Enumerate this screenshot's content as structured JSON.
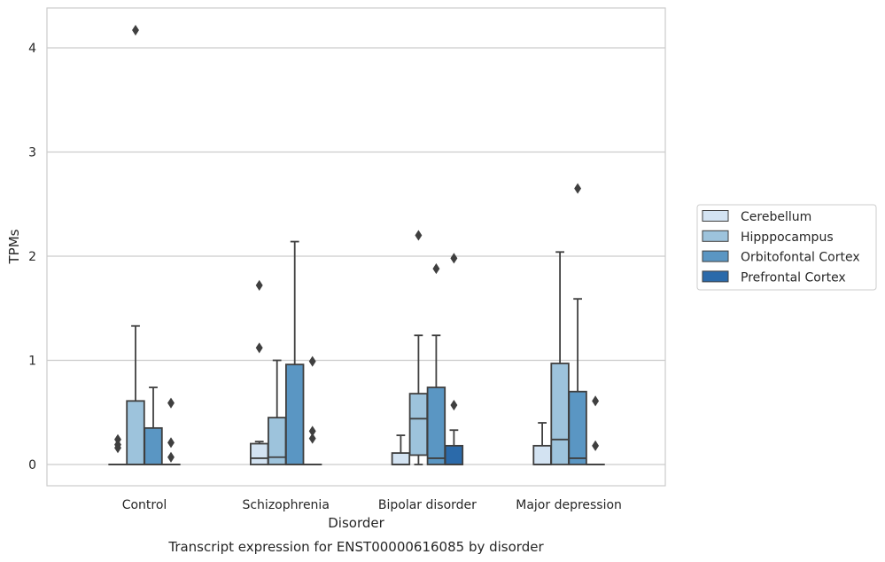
{
  "chart_data": {
    "type": "box",
    "caption": "Transcript expression for ENST00000616085 by disorder",
    "xlabel": "Disorder",
    "ylabel": "TPMs",
    "ylim": [
      -0.2,
      4.38
    ],
    "yticks": [
      0,
      1,
      2,
      3,
      4
    ],
    "grid": "horizontal",
    "legend_position": "right",
    "categories": [
      "Control",
      "Schizophrenia",
      "Bipolar disorder",
      "Major depression"
    ],
    "series": [
      {
        "name": "Cerebellum",
        "color": "#d3e3f2",
        "boxes": [
          {
            "q1": 0,
            "median": 0,
            "q3": 0,
            "whisker_low": 0,
            "whisker_high": 0,
            "outliers": [
              0.24,
              0.19,
              0.16
            ]
          },
          {
            "q1": 0,
            "median": 0.06,
            "q3": 0.2,
            "whisker_low": 0,
            "whisker_high": 0.22,
            "outliers": [
              1.72,
              1.12
            ]
          },
          {
            "q1": 0,
            "median": 0,
            "q3": 0.11,
            "whisker_low": 0,
            "whisker_high": 0.28,
            "outliers": []
          },
          {
            "q1": 0,
            "median": 0,
            "q3": 0.18,
            "whisker_low": 0,
            "whisker_high": 0.4,
            "outliers": []
          }
        ]
      },
      {
        "name": "Hipppocampus",
        "color": "#9dc3dc",
        "boxes": [
          {
            "q1": 0,
            "median": 0,
            "q3": 0.61,
            "whisker_low": 0,
            "whisker_high": 1.33,
            "outliers": [
              4.17
            ]
          },
          {
            "q1": 0,
            "median": 0.07,
            "q3": 0.45,
            "whisker_low": 0,
            "whisker_high": 1.0,
            "outliers": []
          },
          {
            "q1": 0.09,
            "median": 0.44,
            "q3": 0.68,
            "whisker_low": 0,
            "whisker_high": 1.24,
            "outliers": [
              2.2
            ]
          },
          {
            "q1": 0,
            "median": 0.24,
            "q3": 0.97,
            "whisker_low": 0,
            "whisker_high": 2.04,
            "outliers": []
          }
        ]
      },
      {
        "name": "Orbitofontal Cortex",
        "color": "#5a96c3",
        "boxes": [
          {
            "q1": 0,
            "median": 0,
            "q3": 0.35,
            "whisker_low": 0,
            "whisker_high": 0.74,
            "outliers": []
          },
          {
            "q1": 0,
            "median": 0,
            "q3": 0.96,
            "whisker_low": 0,
            "whisker_high": 2.14,
            "outliers": []
          },
          {
            "q1": 0,
            "median": 0.06,
            "q3": 0.74,
            "whisker_low": 0,
            "whisker_high": 1.24,
            "outliers": [
              1.88
            ]
          },
          {
            "q1": 0,
            "median": 0.06,
            "q3": 0.7,
            "whisker_low": 0,
            "whisker_high": 1.59,
            "outliers": [
              2.65
            ]
          }
        ]
      },
      {
        "name": "Prefrontal Cortex",
        "color": "#2b6aaa",
        "boxes": [
          {
            "q1": 0,
            "median": 0,
            "q3": 0,
            "whisker_low": 0,
            "whisker_high": 0,
            "outliers": [
              0.59,
              0.21,
              0.07
            ]
          },
          {
            "q1": 0,
            "median": 0,
            "q3": 0,
            "whisker_low": 0,
            "whisker_high": 0,
            "outliers": [
              0.99,
              0.32,
              0.25
            ]
          },
          {
            "q1": 0,
            "median": 0,
            "q3": 0.18,
            "whisker_low": 0,
            "whisker_high": 0.33,
            "outliers": [
              1.98,
              0.57
            ]
          },
          {
            "q1": 0,
            "median": 0,
            "q3": 0,
            "whisker_low": 0,
            "whisker_high": 0,
            "outliers": [
              0.61,
              0.18
            ]
          }
        ]
      }
    ]
  }
}
